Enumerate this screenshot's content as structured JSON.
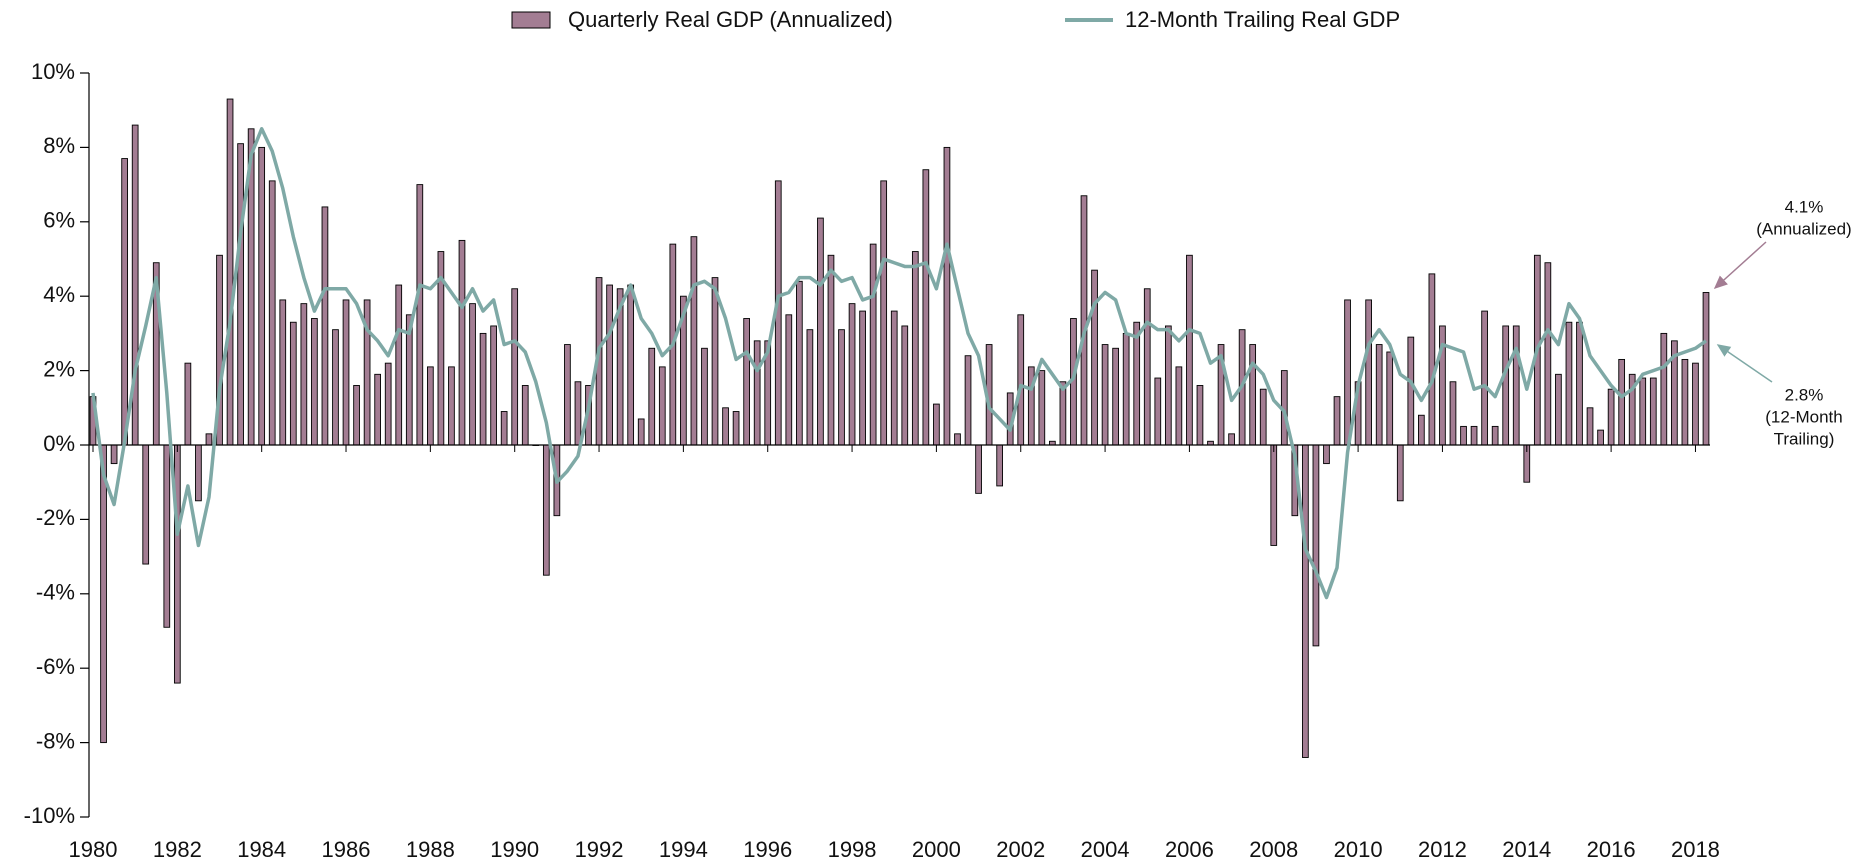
{
  "chart_data": {
    "type": "combo",
    "categories": [
      "1980",
      null,
      null,
      null,
      null,
      null,
      null,
      null,
      "1982",
      null,
      null,
      null,
      null,
      null,
      null,
      null,
      "1984",
      null,
      null,
      null,
      null,
      null,
      null,
      null,
      "1986",
      null,
      null,
      null,
      null,
      null,
      null,
      null,
      "1988",
      null,
      null,
      null,
      null,
      null,
      null,
      null,
      "1990",
      null,
      null,
      null,
      null,
      null,
      null,
      null,
      "1992",
      null,
      null,
      null,
      null,
      null,
      null,
      null,
      "1994",
      null,
      null,
      null,
      null,
      null,
      null,
      null,
      "1996",
      null,
      null,
      null,
      null,
      null,
      null,
      null,
      "1998",
      null,
      null,
      null,
      null,
      null,
      null,
      null,
      "2000",
      null,
      null,
      null,
      null,
      null,
      null,
      null,
      "2002",
      null,
      null,
      null,
      null,
      null,
      null,
      null,
      "2004",
      null,
      null,
      null,
      null,
      null,
      null,
      null,
      "2006",
      null,
      null,
      null,
      null,
      null,
      null,
      null,
      "2008",
      null,
      null,
      null,
      null,
      null,
      null,
      null,
      "2010",
      null,
      null,
      null,
      null,
      null,
      null,
      null,
      "2012",
      null,
      null,
      null,
      null,
      null,
      null,
      null,
      "2014",
      null,
      null,
      null,
      null,
      null,
      null,
      null,
      "2016",
      null,
      null,
      null,
      null,
      null,
      null,
      null,
      "2018",
      null
    ],
    "series": [
      {
        "name": "Quarterly Real GDP (Annualized)",
        "type": "bar",
        "color": "#a37d93",
        "values": [
          1.3,
          -8.0,
          -0.5,
          7.7,
          8.6,
          -3.2,
          4.9,
          -4.9,
          -6.4,
          2.2,
          -1.5,
          0.3,
          5.1,
          9.3,
          8.1,
          8.5,
          8.0,
          7.1,
          3.9,
          3.3,
          3.8,
          3.4,
          6.4,
          3.1,
          3.9,
          1.6,
          3.9,
          1.9,
          2.2,
          4.3,
          3.5,
          7.0,
          2.1,
          5.2,
          2.1,
          5.5,
          3.8,
          3.0,
          3.2,
          0.9,
          4.2,
          1.6,
          0.0,
          -3.5,
          -1.9,
          2.7,
          1.7,
          1.6,
          4.5,
          4.3,
          4.2,
          4.3,
          0.7,
          2.6,
          2.1,
          5.4,
          4.0,
          5.6,
          2.6,
          4.5,
          1.0,
          0.9,
          3.4,
          2.8,
          2.8,
          7.1,
          3.5,
          4.4,
          3.1,
          6.1,
          5.1,
          3.1,
          3.8,
          3.6,
          5.4,
          7.1,
          3.6,
          3.2,
          5.2,
          7.4,
          1.1,
          8.0,
          0.3,
          2.4,
          -1.3,
          2.7,
          -1.1,
          1.4,
          3.5,
          2.1,
          2.0,
          0.1,
          1.7,
          3.4,
          6.7,
          4.7,
          2.7,
          2.6,
          3.0,
          3.3,
          4.2,
          1.8,
          3.2,
          2.1,
          5.1,
          1.6,
          0.1,
          2.7,
          0.3,
          3.1,
          2.7,
          1.5,
          -2.7,
          2.0,
          -1.9,
          -8.4,
          -5.4,
          -0.5,
          1.3,
          3.9,
          1.7,
          3.9,
          2.7,
          2.5,
          -1.5,
          2.9,
          0.8,
          4.6,
          3.2,
          1.7,
          0.5,
          0.5,
          3.6,
          0.5,
          3.2,
          3.2,
          -1.0,
          5.1,
          4.9,
          1.9,
          3.3,
          3.3,
          1.0,
          0.4,
          1.5,
          2.3,
          1.9,
          1.8,
          1.8,
          3.0,
          2.8,
          2.3,
          2.2,
          4.1
        ]
      },
      {
        "name": "12-Month Trailing Real GDP",
        "type": "line",
        "color": "#7fa9a6",
        "values": [
          1.4,
          -0.8,
          -1.6,
          0.1,
          2.0,
          3.2,
          4.5,
          1.4,
          -2.4,
          -1.1,
          -2.7,
          -1.4,
          1.5,
          3.3,
          5.7,
          7.8,
          8.5,
          7.9,
          6.9,
          5.6,
          4.5,
          3.6,
          4.2,
          4.2,
          4.2,
          3.8,
          3.1,
          2.8,
          2.4,
          3.1,
          3.0,
          4.3,
          4.2,
          4.5,
          4.1,
          3.7,
          4.2,
          3.6,
          3.9,
          2.7,
          2.8,
          2.5,
          1.7,
          0.6,
          -1.0,
          -0.7,
          -0.3,
          1.0,
          2.6,
          3.0,
          3.7,
          4.3,
          3.4,
          3.0,
          2.4,
          2.7,
          3.5,
          4.3,
          4.4,
          4.2,
          3.4,
          2.3,
          2.5,
          2.0,
          2.5,
          4.0,
          4.1,
          4.5,
          4.5,
          4.3,
          4.7,
          4.4,
          4.5,
          3.9,
          4.0,
          5.0,
          4.9,
          4.8,
          4.8,
          4.9,
          4.2,
          5.4,
          4.2,
          3.0,
          2.4,
          1.0,
          0.7,
          0.4,
          1.6,
          1.5,
          2.3,
          1.9,
          1.5,
          1.8,
          3.0,
          3.8,
          4.1,
          3.9,
          3.0,
          2.9,
          3.3,
          3.1,
          3.1,
          2.8,
          3.1,
          3.0,
          2.2,
          2.4,
          1.2,
          1.6,
          2.2,
          1.9,
          1.2,
          0.9,
          -0.3,
          -2.8,
          -3.4,
          -4.1,
          -3.3,
          -0.2,
          1.6,
          2.7,
          3.1,
          2.7,
          1.9,
          1.7,
          1.2,
          1.7,
          2.7,
          2.6,
          2.5,
          1.5,
          1.6,
          1.3,
          2.0,
          2.6,
          1.5,
          2.6,
          3.1,
          2.7,
          3.8,
          3.4,
          2.4,
          2.0,
          1.6,
          1.3,
          1.5,
          1.9,
          2.0,
          2.1,
          2.4,
          2.5,
          2.6,
          2.8
        ]
      }
    ],
    "ylim": [
      -10,
      10
    ],
    "yticks": [
      {
        "value": -10,
        "label": "-10%"
      },
      {
        "value": -8,
        "label": "-8%"
      },
      {
        "value": -6,
        "label": "-6%"
      },
      {
        "value": -4,
        "label": "-4%"
      },
      {
        "value": -2,
        "label": "-2%"
      },
      {
        "value": 0,
        "label": "0%"
      },
      {
        "value": 2,
        "label": "2%"
      },
      {
        "value": 4,
        "label": "4%"
      },
      {
        "value": 6,
        "label": "6%"
      },
      {
        "value": 8,
        "label": "8%"
      },
      {
        "value": 10,
        "label": "10%"
      }
    ],
    "legend": "top",
    "annotations": [
      {
        "lines": [
          "4.1%",
          "(Annualized)"
        ]
      },
      {
        "lines": [
          "2.8%",
          "(12-Month",
          "Trailing)"
        ]
      }
    ]
  }
}
